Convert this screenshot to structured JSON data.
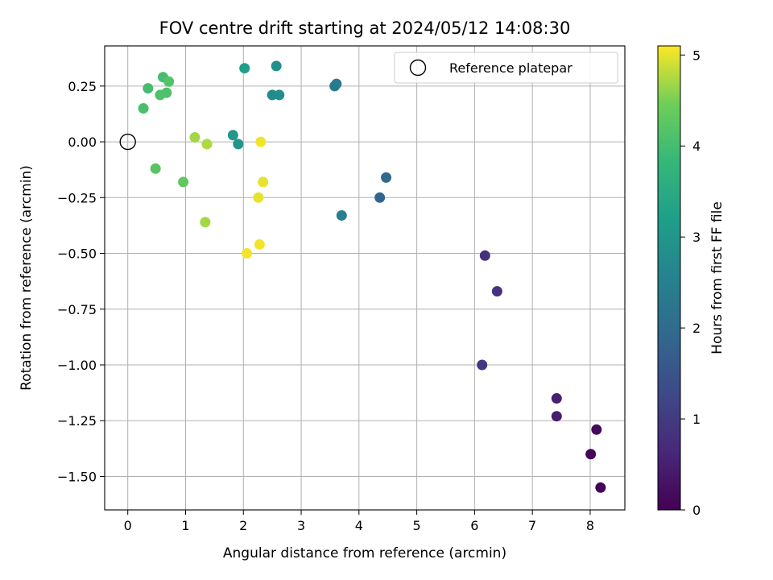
{
  "chart_data": {
    "type": "scatter",
    "title": "FOV centre drift starting at 2024/05/12 14:08:30",
    "xlabel": "Angular distance from reference (arcmin)",
    "ylabel": "Rotation from reference (arcmin)",
    "xlim": [
      -0.4,
      8.6
    ],
    "ylim": [
      -1.65,
      0.43
    ],
    "xticks": [
      0,
      1,
      2,
      3,
      4,
      5,
      6,
      7,
      8
    ],
    "xtick_labels": [
      "0",
      "1",
      "2",
      "3",
      "4",
      "5",
      "6",
      "7",
      "8"
    ],
    "yticks": [
      0.25,
      0.0,
      -0.25,
      -0.5,
      -0.75,
      -1.0,
      -1.25,
      -1.5
    ],
    "ytick_labels": [
      "0.25",
      "0.00",
      "−0.25",
      "−0.50",
      "−0.75",
      "−1.00",
      "−1.25",
      "−1.50"
    ],
    "grid": true,
    "legend": {
      "position": "top-right",
      "entries": [
        "Reference platepar"
      ]
    },
    "reference_point": {
      "x": 0.0,
      "y": 0.0,
      "label": "Reference platepar"
    },
    "colorbar": {
      "label": "Hours from first FF file",
      "colormap": "viridis",
      "range": [
        0,
        5.1
      ],
      "ticks": [
        0,
        1,
        2,
        3,
        4,
        5
      ],
      "tick_labels": [
        "0",
        "1",
        "2",
        "3",
        "4",
        "5"
      ]
    },
    "points": [
      {
        "x": 8.18,
        "y": -1.55,
        "hours": 0.05
      },
      {
        "x": 8.01,
        "y": -1.4,
        "hours": 0.1
      },
      {
        "x": 8.11,
        "y": -1.29,
        "hours": 0.15
      },
      {
        "x": 7.42,
        "y": -1.23,
        "hours": 0.45
      },
      {
        "x": 7.42,
        "y": -1.15,
        "hours": 0.5
      },
      {
        "x": 6.13,
        "y": -1.0,
        "hours": 0.95
      },
      {
        "x": 6.39,
        "y": -0.67,
        "hours": 0.85
      },
      {
        "x": 6.18,
        "y": -0.51,
        "hours": 0.8
      },
      {
        "x": 4.36,
        "y": -0.25,
        "hours": 1.85
      },
      {
        "x": 4.47,
        "y": -0.16,
        "hours": 1.95
      },
      {
        "x": 3.7,
        "y": -0.33,
        "hours": 2.45
      },
      {
        "x": 3.58,
        "y": 0.25,
        "hours": 2.3
      },
      {
        "x": 3.61,
        "y": 0.26,
        "hours": 2.35
      },
      {
        "x": 2.5,
        "y": 0.21,
        "hours": 2.75
      },
      {
        "x": 2.62,
        "y": 0.21,
        "hours": 2.8
      },
      {
        "x": 2.57,
        "y": 0.34,
        "hours": 2.85
      },
      {
        "x": 2.02,
        "y": 0.33,
        "hours": 3.2
      },
      {
        "x": 1.82,
        "y": 0.03,
        "hours": 3.05
      },
      {
        "x": 1.91,
        "y": -0.01,
        "hours": 3.0
      },
      {
        "x": 0.27,
        "y": 0.15,
        "hours": 4.05
      },
      {
        "x": 0.35,
        "y": 0.24,
        "hours": 4.0
      },
      {
        "x": 0.56,
        "y": 0.21,
        "hours": 4.1
      },
      {
        "x": 0.61,
        "y": 0.29,
        "hours": 4.0
      },
      {
        "x": 0.67,
        "y": 0.22,
        "hours": 4.1
      },
      {
        "x": 0.71,
        "y": 0.27,
        "hours": 4.15
      },
      {
        "x": 0.48,
        "y": -0.12,
        "hours": 4.2
      },
      {
        "x": 0.96,
        "y": -0.18,
        "hours": 4.3
      },
      {
        "x": 1.16,
        "y": 0.02,
        "hours": 4.7
      },
      {
        "x": 1.37,
        "y": -0.01,
        "hours": 4.75
      },
      {
        "x": 1.34,
        "y": -0.36,
        "hours": 4.7
      },
      {
        "x": 2.3,
        "y": 0.0,
        "hours": 5.05
      },
      {
        "x": 2.34,
        "y": -0.18,
        "hours": 5.0
      },
      {
        "x": 2.26,
        "y": -0.25,
        "hours": 5.0
      },
      {
        "x": 2.28,
        "y": -0.46,
        "hours": 5.05
      },
      {
        "x": 2.06,
        "y": -0.5,
        "hours": 5.05
      }
    ]
  }
}
